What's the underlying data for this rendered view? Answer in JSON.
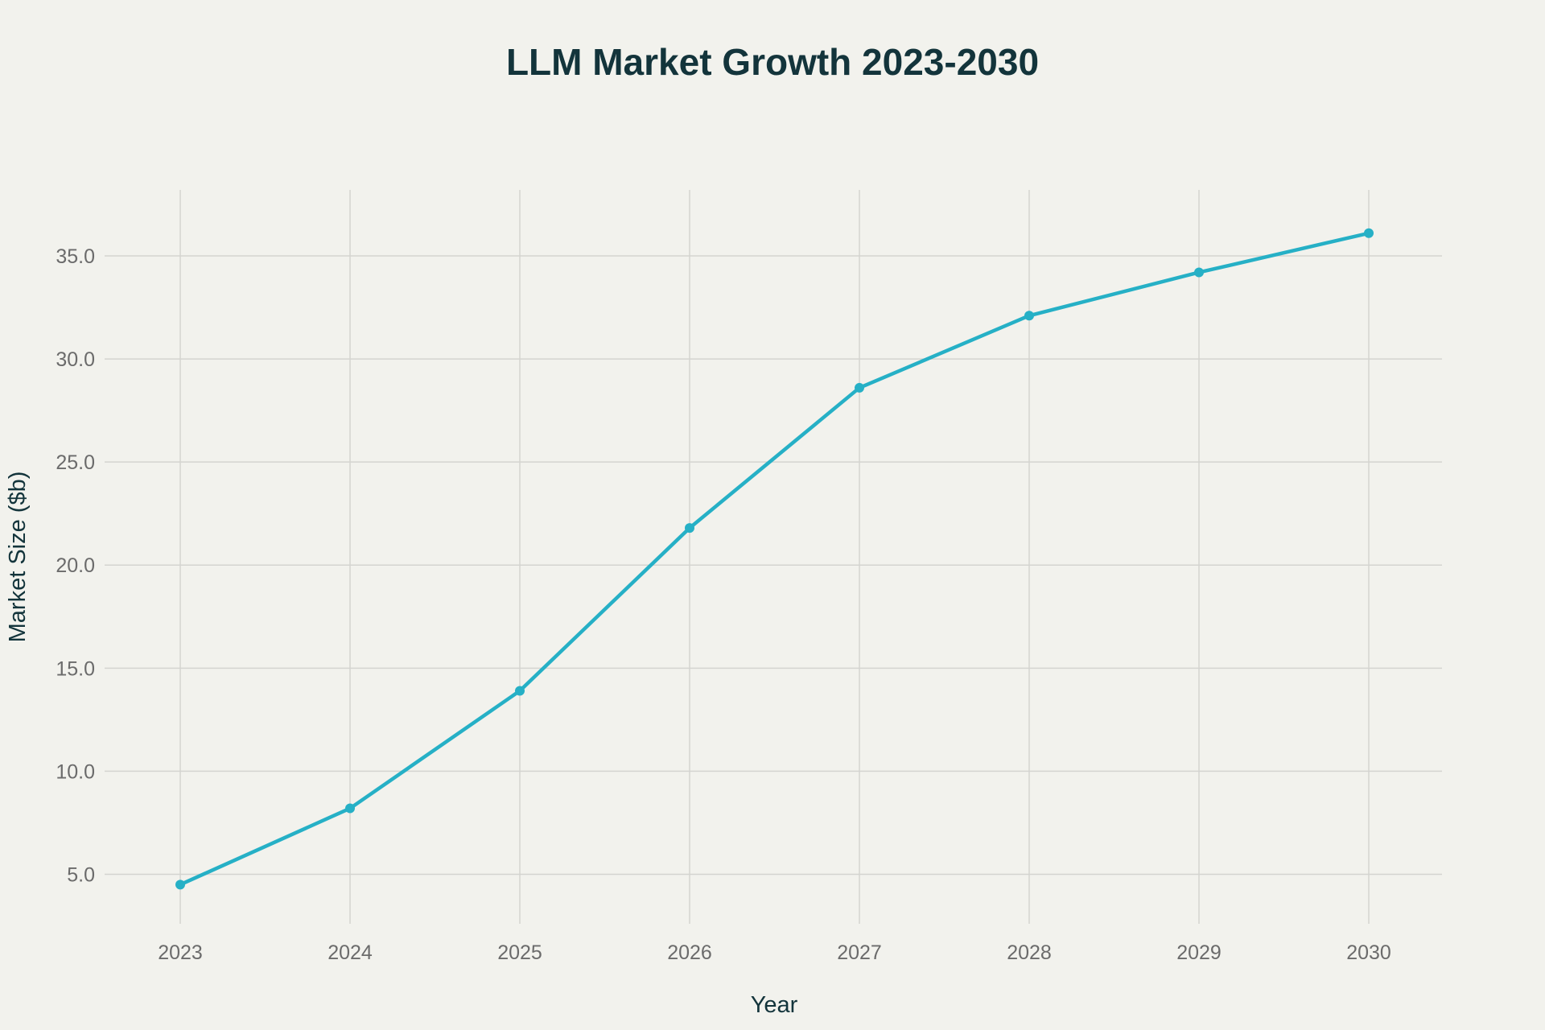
{
  "chart_data": {
    "type": "line",
    "title": "LLM Market Growth 2023-2030",
    "xlabel": "Year",
    "ylabel": "Market Size ($b)",
    "categories": [
      "2023",
      "2024",
      "2025",
      "2026",
      "2027",
      "2028",
      "2029",
      "2030"
    ],
    "series": [
      {
        "name": "Market Size",
        "values": [
          4.5,
          8.2,
          13.9,
          21.8,
          28.6,
          32.1,
          34.2,
          36.1
        ],
        "color": "#26b0c6"
      }
    ],
    "y_ticks": [
      "5.0",
      "10.0",
      "15.0",
      "20.0",
      "25.0",
      "30.0",
      "35.0"
    ],
    "ylim": [
      2.6,
      38.2
    ],
    "grid": true,
    "legend": "none"
  },
  "colors": {
    "background": "#f2f2ed",
    "grid": "#d4d4d0",
    "title": "#13343b",
    "tick": "#6b6b6b"
  }
}
